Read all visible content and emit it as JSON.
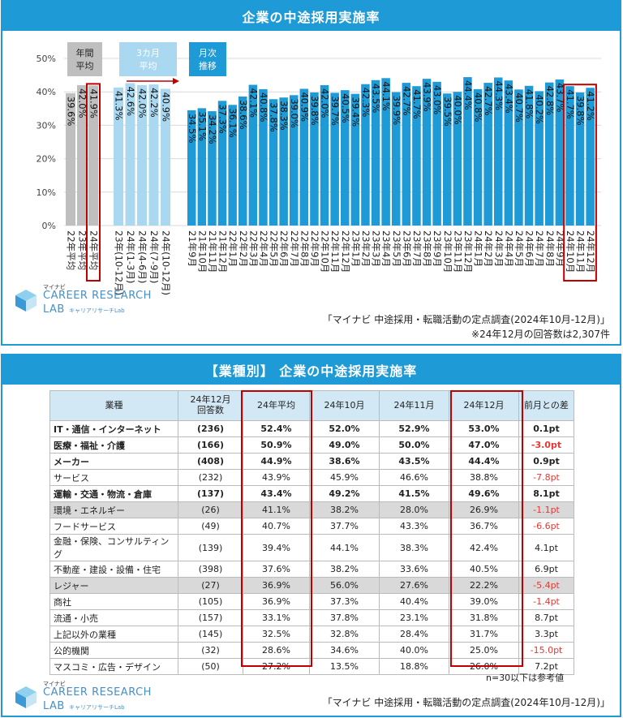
{
  "panel1": {
    "title": "企業の中途採用実施率",
    "source": "「マイナビ 中途採用・転職活動の定点調査(2024年10月-12月)」",
    "note": "※24年12月の回答数は2,307件"
  },
  "panel2": {
    "title": "【業種別】 企業の中途採用実施率",
    "ref_note": "n=30以下は参考値",
    "source": "「マイナビ 中途採用・転職活動の定点調査(2024年10月-12月)」"
  },
  "logo": {
    "top": "マイナビ",
    "main": "CAREER RESEARCH",
    "lab": "LAB",
    "sub": "キャリアリサーチLab"
  },
  "chart_data": {
    "type": "bar",
    "title": "企業の中途採用実施率",
    "ylim": [
      0,
      50
    ],
    "yticks": [
      "0%",
      "10%",
      "20%",
      "30%",
      "40%",
      "50%"
    ],
    "grid": true,
    "groups": [
      {
        "label": "年間平均",
        "categories": [
          "22年平均",
          "23年平均",
          "24年平均"
        ],
        "values": [
          39.6,
          42.0,
          41.9
        ],
        "labels": [
          "39.6%",
          "42.0%",
          "41.9%"
        ],
        "color": "#bfbfbf",
        "highlight": [
          2
        ]
      },
      {
        "label": "3カ月平均",
        "categories": [
          "23年(10-12月)",
          "24年(1-3月)",
          "24年(4-6月)",
          "24年(7-9月)",
          "24年(10-12月)"
        ],
        "values": [
          41.3,
          42.6,
          42.0,
          42.2,
          40.9
        ],
        "labels": [
          "41.3%",
          "42.6%",
          "42.0%",
          "42.2%",
          "40.9%"
        ],
        "color": "#a9d8f0",
        "highlight": []
      },
      {
        "label": "月次推移",
        "categories": [
          "21年9月",
          "21年10月",
          "21年11月",
          "21年12月",
          "22年1月",
          "22年2月",
          "22年3月",
          "22年4月",
          "22年5月",
          "22年6月",
          "22年7月",
          "22年8月",
          "22年9月",
          "22年10月",
          "22年11月",
          "22年12月",
          "23年1月",
          "23年2月",
          "23年3月",
          "23年4月",
          "23年5月",
          "23年6月",
          "23年7月",
          "23年8月",
          "23年9月",
          "23年10月",
          "23年11月",
          "23年12月",
          "24年1月",
          "24年2月",
          "24年3月",
          "24年4月",
          "24年5月",
          "24年6月",
          "24年7月",
          "24年8月",
          "24年9月",
          "24年10月",
          "24年11月",
          "24年12月"
        ],
        "values": [
          34.5,
          35.1,
          34.2,
          37.3,
          36.1,
          38.6,
          42.1,
          40.8,
          37.8,
          38.3,
          39.0,
          40.9,
          39.8,
          42.0,
          39.7,
          40.5,
          39.4,
          42.3,
          43.5,
          44.1,
          39.9,
          42.7,
          41.7,
          43.9,
          43.0,
          39.5,
          40.0,
          44.4,
          40.8,
          42.7,
          44.3,
          43.4,
          40.7,
          41.8,
          40.2,
          42.8,
          43.7,
          41.7,
          39.8,
          41.2
        ],
        "labels": [
          "34.5%",
          "35.1%",
          "34.2%",
          "37.3%",
          "36.1%",
          "38.6%",
          "42.1%",
          "40.8%",
          "37.8%",
          "38.3%",
          "39.0%",
          "40.9%",
          "39.8%",
          "42.0%",
          "39.7%",
          "40.5%",
          "39.4%",
          "42.3%",
          "43.5%",
          "44.1%",
          "39.9%",
          "42.7%",
          "41.7%",
          "43.9%",
          "43.0%",
          "39.5%",
          "40.0%",
          "44.4%",
          "40.8%",
          "42.7%",
          "44.3%",
          "43.4%",
          "40.7%",
          "41.8%",
          "40.2%",
          "42.8%",
          "43.7%",
          "41.7%",
          "39.8%",
          "41.2%"
        ],
        "color": "#1e9ad6",
        "highlight": [
          37,
          38,
          39
        ]
      }
    ]
  },
  "table": {
    "headers": [
      "業種",
      "24年12月\n回答数",
      "24年平均",
      "24年10月",
      "24年11月",
      "24年12月",
      "前月との差"
    ],
    "rows": [
      {
        "name": "IT・通信・インターネット",
        "n": "(236)",
        "avg": "52.4%",
        "oct": "52.0%",
        "nov": "52.9%",
        "dec": "53.0%",
        "diff": "0.1pt",
        "bold": true,
        "ref": false,
        "neg": false
      },
      {
        "name": "医療・福祉・介護",
        "n": "(166)",
        "avg": "50.9%",
        "oct": "49.0%",
        "nov": "50.0%",
        "dec": "47.0%",
        "diff": "-3.0pt",
        "bold": true,
        "ref": false,
        "neg": true
      },
      {
        "name": "メーカー",
        "n": "(408)",
        "avg": "44.9%",
        "oct": "38.6%",
        "nov": "43.5%",
        "dec": "44.4%",
        "diff": "0.9pt",
        "bold": true,
        "ref": false,
        "neg": false
      },
      {
        "name": "サービス",
        "n": "(232)",
        "avg": "43.9%",
        "oct": "45.9%",
        "nov": "46.6%",
        "dec": "38.8%",
        "diff": "-7.8pt",
        "bold": false,
        "ref": false,
        "neg": true
      },
      {
        "name": "運輸・交通・物流・倉庫",
        "n": "(137)",
        "avg": "43.4%",
        "oct": "49.2%",
        "nov": "41.5%",
        "dec": "49.6%",
        "diff": "8.1pt",
        "bold": true,
        "ref": false,
        "neg": false
      },
      {
        "name": "環境・エネルギー",
        "n": "(26)",
        "avg": "41.1%",
        "oct": "38.2%",
        "nov": "28.0%",
        "dec": "26.9%",
        "diff": "-1.1pt",
        "bold": false,
        "ref": true,
        "neg": true
      },
      {
        "name": "フードサービス",
        "n": "(49)",
        "avg": "40.7%",
        "oct": "37.7%",
        "nov": "43.3%",
        "dec": "36.7%",
        "diff": "-6.6pt",
        "bold": false,
        "ref": false,
        "neg": true
      },
      {
        "name": "金融・保険、コンサルティング",
        "n": "(139)",
        "avg": "39.4%",
        "oct": "44.1%",
        "nov": "38.3%",
        "dec": "42.4%",
        "diff": "4.1pt",
        "bold": false,
        "ref": false,
        "neg": false
      },
      {
        "name": "不動産・建設・設備・住宅",
        "n": "(398)",
        "avg": "37.6%",
        "oct": "38.2%",
        "nov": "33.6%",
        "dec": "40.5%",
        "diff": "6.9pt",
        "bold": false,
        "ref": false,
        "neg": false
      },
      {
        "name": "レジャー",
        "n": "(27)",
        "avg": "36.9%",
        "oct": "56.0%",
        "nov": "27.6%",
        "dec": "22.2%",
        "diff": "-5.4pt",
        "bold": false,
        "ref": true,
        "neg": true
      },
      {
        "name": "商社",
        "n": "(105)",
        "avg": "36.9%",
        "oct": "37.3%",
        "nov": "40.4%",
        "dec": "39.0%",
        "diff": "-1.4pt",
        "bold": false,
        "ref": false,
        "neg": true
      },
      {
        "name": "流通・小売",
        "n": "(157)",
        "avg": "33.1%",
        "oct": "37.8%",
        "nov": "23.1%",
        "dec": "31.8%",
        "diff": "8.7pt",
        "bold": false,
        "ref": false,
        "neg": false
      },
      {
        "name": "上記以外の業種",
        "n": "(145)",
        "avg": "32.5%",
        "oct": "32.8%",
        "nov": "28.4%",
        "dec": "31.7%",
        "diff": "3.3pt",
        "bold": false,
        "ref": false,
        "neg": false
      },
      {
        "name": "公的機関",
        "n": "(32)",
        "avg": "28.6%",
        "oct": "34.6%",
        "nov": "40.0%",
        "dec": "25.0%",
        "diff": "-15.0pt",
        "bold": false,
        "ref": false,
        "neg": true
      },
      {
        "name": "マスコミ・広告・デザイン",
        "n": "(50)",
        "avg": "27.2%",
        "oct": "13.5%",
        "nov": "18.8%",
        "dec": "26.0%",
        "diff": "7.2pt",
        "bold": false,
        "ref": false,
        "neg": false
      }
    ]
  }
}
